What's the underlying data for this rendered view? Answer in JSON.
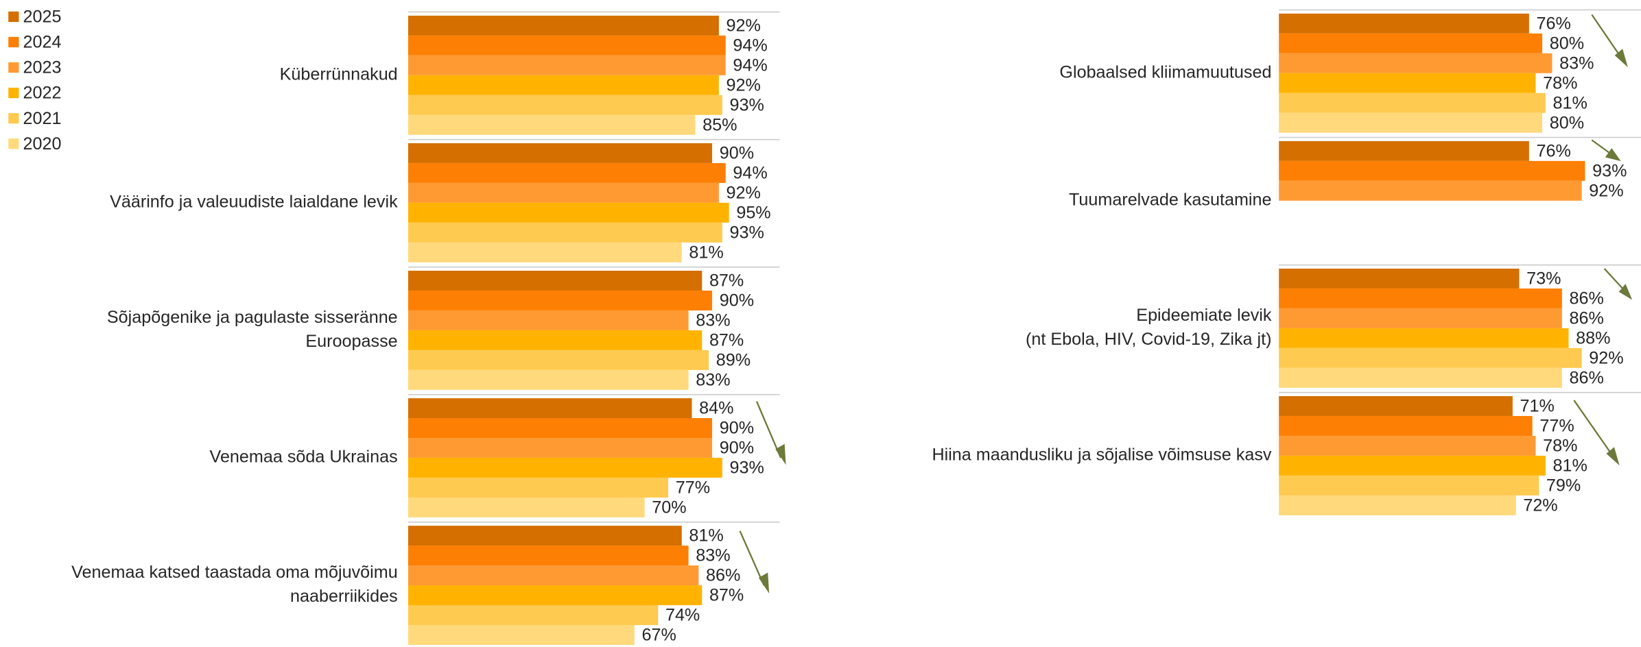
{
  "chart_data": [
    {
      "type": "bar",
      "orientation": "horizontal",
      "xlim": [
        0,
        110
      ],
      "categories": [
        "Küberrünnakud",
        "Väärinfo ja valeuudiste laialdane levik",
        [
          "Sõjapõgenike ja pagulaste sisseränne",
          "Euroopasse"
        ],
        "Venemaa sõda Ukrainas",
        [
          "Venemaa katsed taastada oma mõjuvõimu",
          "naaberriikides"
        ]
      ],
      "series": [
        {
          "name": "2025",
          "color": "#d46f00",
          "values": [
            92,
            90,
            87,
            84,
            81
          ],
          "value_labels": [
            "92%",
            "90%",
            "87%",
            "84%",
            "81%"
          ]
        },
        {
          "name": "2024",
          "color": "#fd7f03",
          "values": [
            94,
            94,
            90,
            90,
            83
          ],
          "value_labels": [
            "94%",
            "94%",
            "90%",
            "90%",
            "83%"
          ]
        },
        {
          "name": "2023",
          "color": "#ff9a33",
          "values": [
            94,
            92,
            83,
            90,
            86
          ],
          "value_labels": [
            "94%",
            "92%",
            "83%",
            "90%",
            "86%"
          ]
        },
        {
          "name": "2022",
          "color": "#ffb300",
          "values": [
            92,
            95,
            87,
            93,
            87
          ],
          "value_labels": [
            "92%",
            "95%",
            "87%",
            "93%",
            "87%"
          ]
        },
        {
          "name": "2021",
          "color": "#ffca4f",
          "values": [
            93,
            93,
            89,
            77,
            74
          ],
          "value_labels": [
            "93%",
            "93%",
            "89%",
            "77%",
            "74%"
          ]
        },
        {
          "name": "2020",
          "color": "#ffd97c",
          "values": [
            85,
            81,
            83,
            70,
            67
          ],
          "value_labels": [
            "85%",
            "81%",
            "83%",
            "70%",
            "67%"
          ]
        }
      ]
    },
    {
      "type": "bar",
      "orientation": "horizontal",
      "xlim": [
        0,
        110
      ],
      "categories": [
        "Globaalsed kliimamuutused",
        "Tuumarelvade kasutamine",
        [
          "Epideemiate levik",
          "(nt Ebola, HIV, Covid-19, Zika jt)"
        ],
        "Hiina maandusliku ja sõjalise võimsuse kasv"
      ],
      "series": [
        {
          "name": "2025",
          "color": "#d46f00",
          "values": [
            76,
            76,
            73,
            71
          ],
          "value_labels": [
            "76%",
            "76%",
            "73%",
            "71%"
          ]
        },
        {
          "name": "2024",
          "color": "#fd7f03",
          "values": [
            80,
            93,
            86,
            77
          ],
          "value_labels": [
            "80%",
            "93%",
            "86%",
            "77%"
          ]
        },
        {
          "name": "2023",
          "color": "#ff9a33",
          "values": [
            83,
            92,
            86,
            78
          ],
          "value_labels": [
            "83%",
            "92%",
            "86%",
            "78%"
          ]
        },
        {
          "name": "2022",
          "color": "#ffb300",
          "values": [
            78,
            null,
            88,
            81
          ],
          "value_labels": [
            "78%",
            null,
            "88%",
            "81%"
          ]
        },
        {
          "name": "2021",
          "color": "#ffca4f",
          "values": [
            81,
            null,
            92,
            79
          ],
          "value_labels": [
            "81%",
            null,
            "92%",
            "79%"
          ]
        },
        {
          "name": "2020",
          "color": "#ffd97c",
          "values": [
            80,
            null,
            86,
            72
          ],
          "value_labels": [
            "80%",
            null,
            "86%",
            "72%"
          ]
        }
      ]
    }
  ]
}
